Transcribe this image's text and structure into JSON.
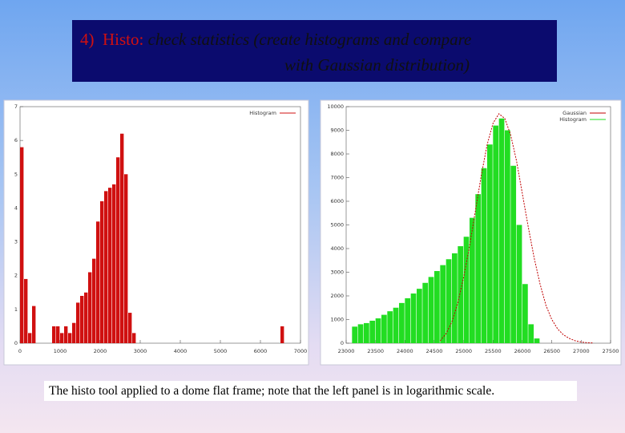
{
  "title": {
    "number": "4)",
    "lead": "Histo:",
    "line1": "check statistics (create histograms and compare",
    "line2": "with Gaussian distribution)"
  },
  "caption": "The histo tool applied to a dome flat frame;  note that the left panel is in logarithmic scale.",
  "chart_data": [
    {
      "type": "histogram",
      "legend": "top-right",
      "bins": [
        0,
        100,
        200,
        300,
        400,
        500,
        600,
        700,
        800,
        900,
        1000,
        1100,
        1200,
        1300,
        1400,
        1500,
        1600,
        1700,
        1800,
        1900,
        2000,
        2100,
        2200,
        2300,
        2400,
        2500,
        2600,
        2700,
        2800,
        2900,
        3000,
        3100,
        3200,
        3300,
        3400,
        3500,
        3600,
        3700,
        3800,
        3900,
        4000,
        4100,
        4200,
        4300,
        4400,
        4500,
        4600,
        4700,
        4800,
        4900,
        5000,
        5100,
        5200,
        5300,
        5400,
        5500,
        5600,
        5700,
        5800,
        5900,
        6000,
        6100,
        6200,
        6300,
        6400,
        6500,
        6600,
        6700,
        6800,
        6900,
        7000
      ],
      "series": [
        {
          "name": "Histogram",
          "color": "#d01010",
          "values": [
            5.8,
            1.9,
            0.3,
            1.1,
            0,
            0,
            0,
            0,
            0.5,
            0.5,
            0.3,
            0.5,
            0.3,
            0.6,
            1.2,
            1.4,
            1.5,
            2.1,
            2.5,
            3.6,
            4.2,
            4.5,
            4.6,
            4.7,
            5.5,
            6.2,
            5.0,
            0.9,
            0.3,
            0,
            0,
            0,
            0,
            0,
            0,
            0,
            0,
            0,
            0,
            0,
            0,
            0,
            0,
            0,
            0,
            0,
            0,
            0,
            0,
            0,
            0,
            0,
            0,
            0,
            0,
            0,
            0,
            0,
            0,
            0,
            0,
            0,
            0,
            0,
            0,
            0.5,
            0,
            0,
            0,
            0
          ]
        }
      ],
      "xlim": [
        0,
        7000
      ],
      "xticks": [
        0,
        1000,
        2000,
        3000,
        4000,
        5000,
        6000,
        7000
      ],
      "ylim": [
        0,
        7
      ],
      "yticks": [
        0,
        1,
        2,
        3,
        4,
        5,
        6,
        7
      ]
    },
    {
      "type": "histogram",
      "legend": "top-right",
      "bins": [
        23100,
        23200,
        23300,
        23400,
        23500,
        23600,
        23700,
        23800,
        23900,
        24000,
        24100,
        24200,
        24300,
        24400,
        24500,
        24600,
        24700,
        24800,
        24900,
        25000,
        25100,
        25200,
        25300,
        25400,
        25500,
        25600,
        25700,
        25800,
        25900,
        26000,
        26100,
        26200,
        26300
      ],
      "series": [
        {
          "name": "Gaussian",
          "type": "line",
          "color": "#c00000",
          "x": [
            24600,
            24700,
            24800,
            24900,
            25000,
            25100,
            25200,
            25300,
            25400,
            25500,
            25600,
            25700,
            25800,
            25900,
            26000,
            26100,
            26200,
            26300,
            26400,
            26500,
            26600,
            26700,
            26800,
            26900,
            27000,
            27100,
            27200
          ],
          "values": [
            100,
            400,
            900,
            1700,
            2800,
            4100,
            5600,
            7100,
            8400,
            9300,
            9700,
            9500,
            8800,
            7700,
            6300,
            4900,
            3600,
            2500,
            1600,
            1000,
            600,
            350,
            200,
            100,
            50,
            20,
            10
          ]
        },
        {
          "name": "Histogram",
          "color": "#22dd22",
          "values": [
            700,
            800,
            850,
            950,
            1050,
            1200,
            1350,
            1500,
            1700,
            1900,
            2100,
            2300,
            2550,
            2800,
            3050,
            3300,
            3550,
            3800,
            4100,
            4500,
            5300,
            6300,
            7400,
            8400,
            9200,
            9500,
            9000,
            7500,
            5000,
            2500,
            800,
            200
          ]
        }
      ],
      "xlim": [
        23000,
        27500
      ],
      "xticks": [
        23000,
        23500,
        24000,
        24500,
        25000,
        25500,
        26000,
        26500,
        27000,
        27500
      ],
      "ylim": [
        0,
        10000
      ],
      "yticks": [
        0,
        1000,
        2000,
        3000,
        4000,
        5000,
        6000,
        7000,
        8000,
        9000,
        10000
      ]
    }
  ]
}
